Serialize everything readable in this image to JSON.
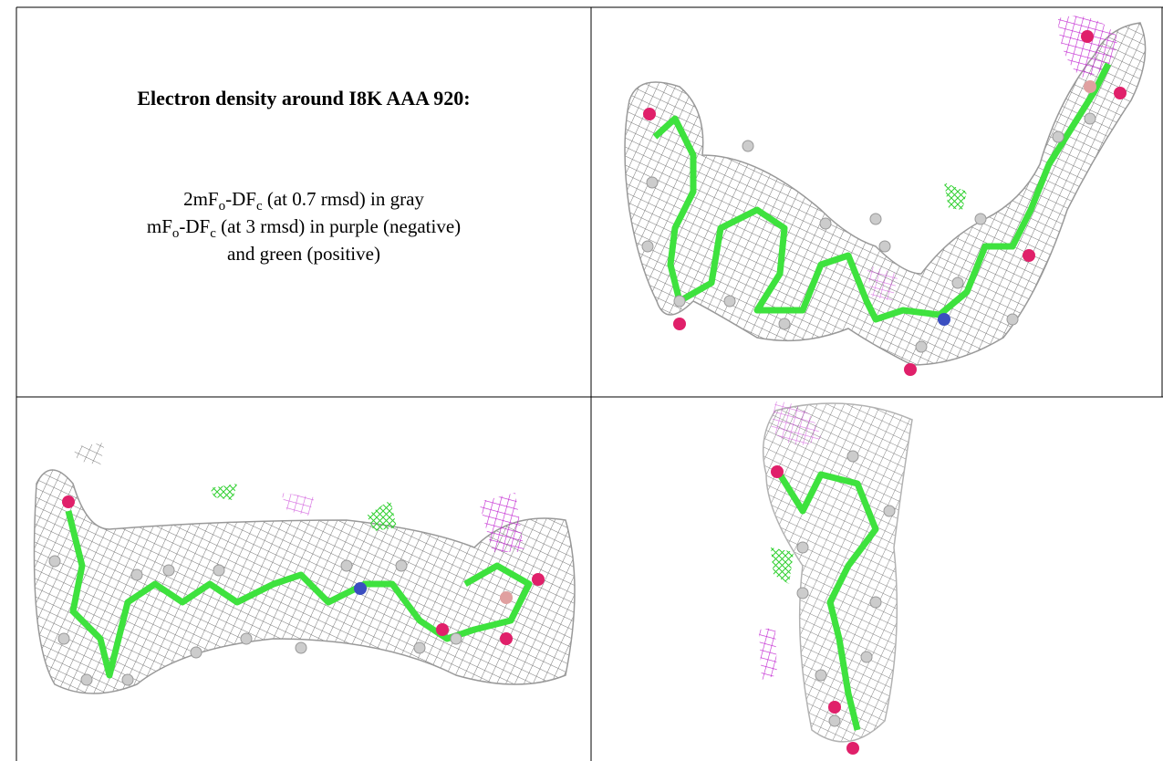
{
  "header": {
    "title": "Electron density around I8K AAA 920:"
  },
  "description": [
    [
      "2mF",
      "o",
      "-DF",
      "c",
      " (at 0.7 rmsd) in gray"
    ],
    [
      "mF",
      "o",
      "-DF",
      "c",
      " (at 3 rmsd) in purple (negative)"
    ],
    [
      "and green (positive)"
    ]
  ]
}
